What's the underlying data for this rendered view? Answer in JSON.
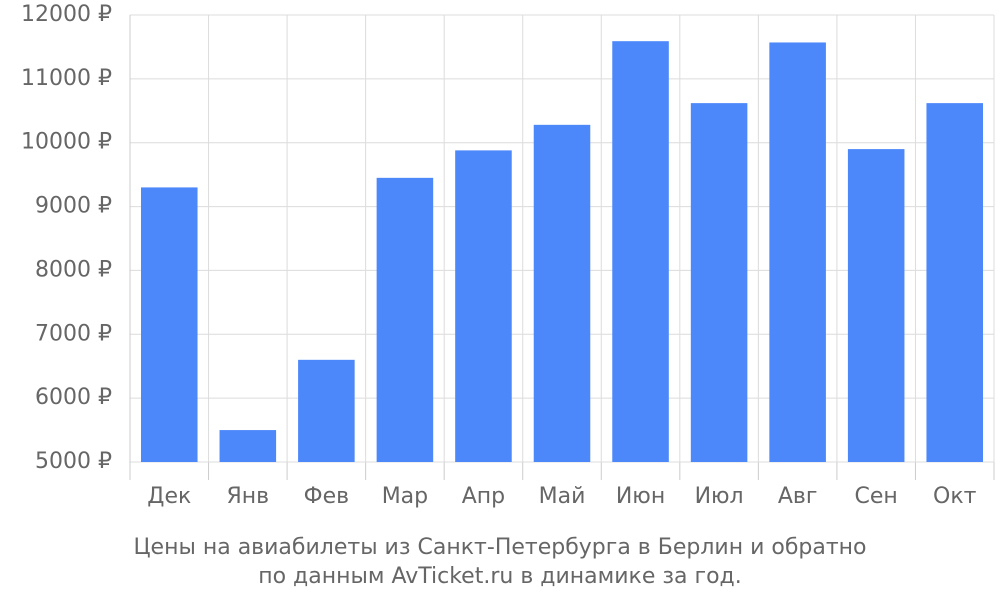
{
  "chart_data": {
    "type": "bar",
    "title": "Цены на авиабилеты из Санкт-Петербурга в Берлин и обратно",
    "subtitle": "по данным AvTicket.ru в динамике за год.",
    "categories": [
      "Дек",
      "Янв",
      "Фев",
      "Мар",
      "Апр",
      "Май",
      "Июн",
      "Июл",
      "Авг",
      "Сен",
      "Окт"
    ],
    "values": [
      9300,
      5500,
      6600,
      9450,
      9880,
      10280,
      11590,
      10620,
      11570,
      9900,
      10620
    ],
    "color": "#4d88fa",
    "ylim": [
      5000,
      12000
    ],
    "yticks": [
      {
        "value": 5000,
        "label": "5000 ₽"
      },
      {
        "value": 6000,
        "label": "6000 ₽"
      },
      {
        "value": 7000,
        "label": "7000 ₽"
      },
      {
        "value": 8000,
        "label": "8000 ₽"
      },
      {
        "value": 9000,
        "label": "9000 ₽"
      },
      {
        "value": 10000,
        "label": "10000 ₽"
      },
      {
        "value": 11000,
        "label": "11000 ₽"
      },
      {
        "value": 12000,
        "label": "12000 ₽"
      }
    ],
    "grid": true
  }
}
